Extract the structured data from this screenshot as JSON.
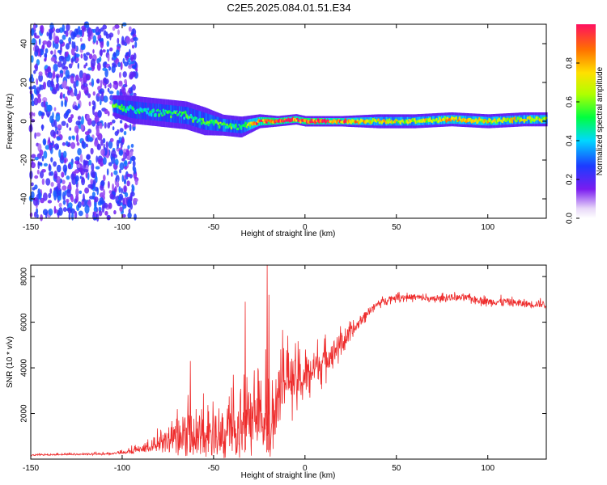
{
  "title": "C2E5.2025.084.01.51.E34",
  "chart_data": [
    {
      "type": "heatmap",
      "xlabel": "Height of straight line (km)",
      "ylabel": "Frequency (Hz)",
      "xlim": [
        -150,
        132
      ],
      "ylim": [
        -50,
        50
      ],
      "xticks": [
        -150,
        -100,
        -50,
        0,
        50,
        100
      ],
      "yticks": [
        -40,
        -20,
        0,
        20,
        40
      ],
      "colorbar": {
        "label": "Normalized spectral amplitude",
        "ticks": [
          "0.0",
          "0.2",
          "0.4",
          "0.6",
          "0.8"
        ],
        "range": [
          0,
          1
        ]
      },
      "noise_region": {
        "x": [
          -150,
          -100
        ],
        "y": [
          -50,
          50
        ],
        "mean_amplitude": 0.25
      },
      "ridge": [
        {
          "x": -105,
          "y": 8,
          "width": 6,
          "amplitude": 0.55
        },
        {
          "x": -95,
          "y": 6,
          "width": 8,
          "amplitude": 0.45
        },
        {
          "x": -85,
          "y": 5,
          "width": 8,
          "amplitude": 0.45
        },
        {
          "x": -75,
          "y": 4,
          "width": 8,
          "amplitude": 0.5
        },
        {
          "x": -65,
          "y": 3,
          "width": 8,
          "amplitude": 0.5
        },
        {
          "x": -55,
          "y": 0,
          "width": 8,
          "amplitude": 0.5
        },
        {
          "x": -45,
          "y": -2,
          "width": 6,
          "amplitude": 0.55
        },
        {
          "x": -35,
          "y": -3,
          "width": 6,
          "amplitude": 0.5
        },
        {
          "x": -25,
          "y": 0,
          "width": 4,
          "amplitude": 0.9
        },
        {
          "x": -15,
          "y": 0,
          "width": 3,
          "amplitude": 0.95
        },
        {
          "x": -5,
          "y": 1,
          "width": 3,
          "amplitude": 0.9
        },
        {
          "x": 0,
          "y": 0,
          "width": 3,
          "amplitude": 0.95
        },
        {
          "x": 20,
          "y": 0,
          "width": 3,
          "amplitude": 0.85
        },
        {
          "x": 40,
          "y": 0,
          "width": 4,
          "amplitude": 0.7
        },
        {
          "x": 60,
          "y": 0,
          "width": 4,
          "amplitude": 0.65
        },
        {
          "x": 80,
          "y": 1,
          "width": 4,
          "amplitude": 0.75
        },
        {
          "x": 100,
          "y": 0,
          "width": 4,
          "amplitude": 0.7
        },
        {
          "x": 120,
          "y": 1,
          "width": 4,
          "amplitude": 0.7
        },
        {
          "x": 132,
          "y": 1,
          "width": 4,
          "amplitude": 0.7
        }
      ]
    },
    {
      "type": "line",
      "xlabel": "Height of straight line (km)",
      "ylabel": "SNR (10 * v/v)",
      "xlim": [
        -150,
        132
      ],
      "ylim": [
        0,
        8500
      ],
      "xticks": [
        -150,
        -100,
        -50,
        0,
        50,
        100
      ],
      "yticks": [
        2000,
        4000,
        6000,
        8000
      ],
      "series": [
        {
          "color": "#ee2c2c",
          "x": [
            -150,
            -130,
            -110,
            -100,
            -90,
            -85,
            -80,
            -75,
            -70,
            -65,
            -60,
            -55,
            -50,
            -45,
            -40,
            -35,
            -30,
            -25,
            -20,
            -15,
            -10,
            -5,
            0,
            5,
            10,
            15,
            20,
            25,
            30,
            35,
            40,
            45,
            50,
            60,
            70,
            80,
            90,
            100,
            110,
            120,
            132
          ],
          "values": [
            200,
            220,
            250,
            300,
            500,
            700,
            800,
            1100,
            1200,
            1400,
            1200,
            1500,
            1600,
            1300,
            1700,
            2000,
            2500,
            2800,
            2400,
            3200,
            3800,
            3400,
            3600,
            4000,
            4300,
            4700,
            5100,
            5500,
            6000,
            6500,
            6800,
            7000,
            7100,
            7100,
            7000,
            7100,
            7050,
            6900,
            6900,
            6800,
            6800
          ],
          "spread": [
            60,
            60,
            80,
            100,
            300,
            500,
            700,
            1000,
            1300,
            1600,
            1500,
            1700,
            1800,
            1600,
            2000,
            2200,
            2500,
            2800,
            2600,
            2400,
            2000,
            1800,
            1600,
            1400,
            1200,
            1000,
            800,
            600,
            400,
            300,
            250,
            250,
            250,
            250,
            250,
            250,
            250,
            300,
            300,
            300,
            300
          ],
          "spikes": [
            {
              "x": -63,
              "y": 4300
            },
            {
              "x": -33,
              "y": 6900
            },
            {
              "x": -21,
              "y": 8500
            },
            {
              "x": -20,
              "y": 7200
            }
          ]
        }
      ]
    }
  ]
}
